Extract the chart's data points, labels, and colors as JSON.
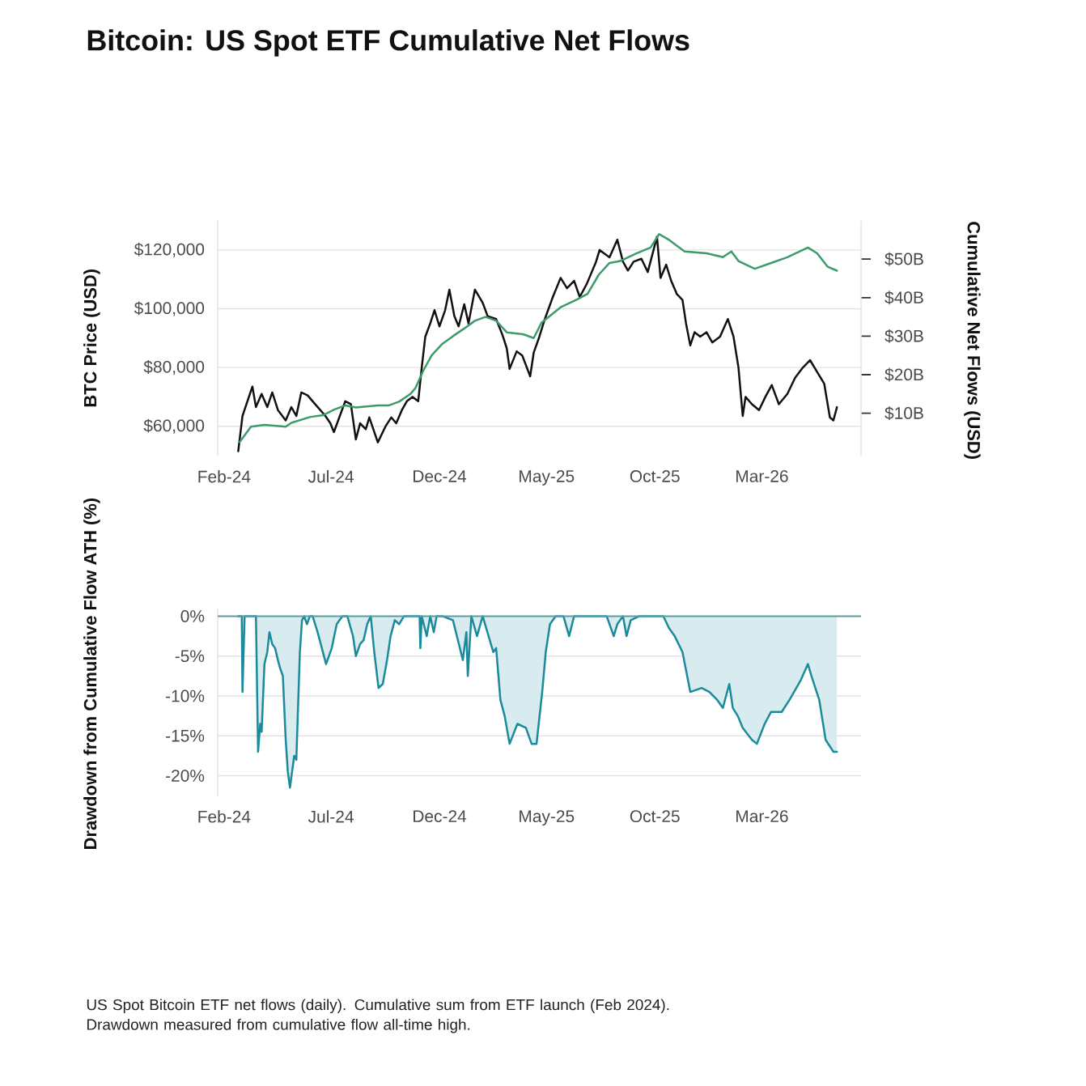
{
  "chart_data": [
    {
      "type": "line",
      "title": "Bitcoin: US Spot ETF Cumulative Net Flows",
      "ylabel": "BTC Price (USD)",
      "y2label": "Cumulative Net Flows (USD)",
      "xlim": [
        "2024-01-23",
        "2026-07-19"
      ],
      "xticks": [
        {
          "value": "2024-02-01",
          "label": "Feb-24"
        },
        {
          "value": "2024-07-01",
          "label": "Jul-24"
        },
        {
          "value": "2024-12-01",
          "label": "Dec-24"
        },
        {
          "value": "2025-05-01",
          "label": "May-25"
        },
        {
          "value": "2025-10-01",
          "label": "Oct-25"
        },
        {
          "value": "2026-03-01",
          "label": "Mar-26"
        }
      ],
      "ylim": [
        50000,
        130000
      ],
      "yticks": [
        {
          "value": 60000,
          "label": "$60,000"
        },
        {
          "value": 80000,
          "label": "$80,000"
        },
        {
          "value": 100000,
          "label": "$100,000"
        },
        {
          "value": 120000,
          "label": "$120,000"
        }
      ],
      "y2lim": [
        -1,
        60
      ],
      "y2ticks": [
        {
          "value": 10,
          "label": "$10B"
        },
        {
          "value": 20,
          "label": "$20B"
        },
        {
          "value": 30,
          "label": "$30B"
        },
        {
          "value": 40,
          "label": "$40B"
        },
        {
          "value": 50,
          "label": "$50B"
        }
      ],
      "grid": "y",
      "series": [
        {
          "color": "#111111",
          "x": [
            "2024-02-21",
            "2024-02-27",
            "2024-03-12",
            "2024-03-17",
            "2024-03-25",
            "2024-04-02",
            "2024-04-09",
            "2024-04-17",
            "2024-04-28",
            "2024-05-06",
            "2024-05-13",
            "2024-05-20",
            "2024-05-29",
            "2024-06-05",
            "2024-06-23",
            "2024-06-30",
            "2024-07-05",
            "2024-07-21",
            "2024-07-29",
            "2024-08-05",
            "2024-08-11",
            "2024-08-19",
            "2024-08-24",
            "2024-09-05",
            "2024-09-16",
            "2024-09-24",
            "2024-10-01",
            "2024-10-09",
            "2024-10-16",
            "2024-10-24",
            "2024-11-01",
            "2024-11-06",
            "2024-11-11",
            "2024-11-18",
            "2024-11-24",
            "2024-12-01",
            "2024-12-09",
            "2024-12-15",
            "2024-12-22",
            "2024-12-28",
            "2025-01-05",
            "2025-01-11",
            "2025-01-20",
            "2025-01-31",
            "2025-02-07",
            "2025-02-19",
            "2025-02-28",
            "2025-03-06",
            "2025-03-10",
            "2025-03-20",
            "2025-03-28",
            "2025-04-08",
            "2025-04-13",
            "2025-04-21",
            "2025-04-28",
            "2025-05-10",
            "2025-05-21",
            "2025-05-30",
            "2025-06-09",
            "2025-06-17",
            "2025-06-27",
            "2025-07-10",
            "2025-07-15",
            "2025-07-29",
            "2025-08-09",
            "2025-08-17",
            "2025-08-24",
            "2025-09-01",
            "2025-09-12",
            "2025-09-21",
            "2025-10-04",
            "2025-10-09",
            "2025-10-17",
            "2025-10-24",
            "2025-11-01",
            "2025-11-09",
            "2025-11-14",
            "2025-11-20",
            "2025-11-26",
            "2025-12-04",
            "2025-12-13",
            "2025-12-21",
            "2026-01-01",
            "2026-01-12",
            "2026-01-20",
            "2026-01-27",
            "2026-02-02",
            "2026-02-06",
            "2026-02-15",
            "2026-02-25",
            "2026-03-06",
            "2026-03-15",
            "2026-03-25",
            "2026-04-06",
            "2026-04-17",
            "2026-04-28",
            "2026-05-08",
            "2026-05-18",
            "2026-05-28",
            "2026-06-05",
            "2026-06-10",
            "2026-06-15"
          ],
          "values": [
            51500,
            63500,
            73500,
            66500,
            71000,
            66500,
            71500,
            65500,
            62000,
            66500,
            63500,
            71500,
            70500,
            68500,
            63500,
            61000,
            58000,
            68500,
            67500,
            55500,
            61000,
            59000,
            63000,
            54500,
            60000,
            63000,
            61000,
            65500,
            68500,
            70000,
            68500,
            80000,
            90500,
            95000,
            99500,
            94000,
            99500,
            106500,
            97500,
            94000,
            101500,
            95000,
            106500,
            102000,
            97500,
            96500,
            91000,
            86500,
            79500,
            85500,
            84000,
            77000,
            85000,
            90500,
            96000,
            104000,
            110500,
            107000,
            109500,
            104000,
            108500,
            116000,
            120000,
            117500,
            123500,
            116000,
            113000,
            116000,
            117000,
            112500,
            124500,
            110500,
            115000,
            109500,
            105000,
            103000,
            95000,
            87500,
            92000,
            90500,
            92000,
            88500,
            90500,
            96500,
            90500,
            80000,
            63500,
            70000,
            67500,
            65500,
            70000,
            74000,
            67500,
            71000,
            76500,
            80000,
            82500,
            78500,
            74500,
            63000,
            62000,
            66500
          ]
        },
        {
          "color": "#3d9b6b",
          "axis": "y2",
          "x": [
            "2024-02-23",
            "2024-03-10",
            "2024-03-29",
            "2024-04-28",
            "2024-05-06",
            "2024-06-01",
            "2024-06-20",
            "2024-07-06",
            "2024-07-21",
            "2024-08-05",
            "2024-09-05",
            "2024-09-20",
            "2024-10-05",
            "2024-10-21",
            "2024-10-28",
            "2024-11-08",
            "2024-11-20",
            "2024-12-05",
            "2024-12-20",
            "2025-01-05",
            "2025-01-20",
            "2025-02-04",
            "2025-02-19",
            "2025-03-06",
            "2025-03-29",
            "2025-04-13",
            "2025-04-24",
            "2025-05-21",
            "2025-06-13",
            "2025-06-28",
            "2025-07-14",
            "2025-07-29",
            "2025-08-13",
            "2025-09-05",
            "2025-09-25",
            "2025-10-07",
            "2025-10-21",
            "2025-11-12",
            "2025-12-13",
            "2026-01-05",
            "2026-01-17",
            "2026-01-27",
            "2026-02-19",
            "2026-03-14",
            "2026-04-06",
            "2026-05-05",
            "2026-05-18",
            "2026-06-02",
            "2026-06-15"
          ],
          "values": [
            2.5,
            6.5,
            7,
            6.5,
            7.5,
            9,
            9.5,
            11,
            12,
            11.5,
            12,
            12,
            13,
            15,
            16.5,
            21,
            25,
            28,
            30,
            32,
            34,
            35,
            34,
            31,
            30.5,
            29.5,
            33.5,
            37.5,
            39.5,
            41,
            46,
            49,
            49.5,
            51.5,
            53,
            56.5,
            55,
            52,
            51.5,
            50.5,
            52,
            49.5,
            47.5,
            49,
            50.5,
            53,
            51.5,
            48,
            47
          ]
        }
      ]
    },
    {
      "type": "area",
      "ylabel": "Drawdown from Cumulative Flow ATH (%)",
      "xlim": [
        "2024-01-23",
        "2026-07-19"
      ],
      "xticks": [
        {
          "value": "2024-02-01",
          "label": "Feb-24"
        },
        {
          "value": "2024-07-01",
          "label": "Jul-24"
        },
        {
          "value": "2024-12-01",
          "label": "Dec-24"
        },
        {
          "value": "2025-05-01",
          "label": "May-25"
        },
        {
          "value": "2025-10-01",
          "label": "Oct-25"
        },
        {
          "value": "2026-03-01",
          "label": "Mar-26"
        }
      ],
      "ylim": [
        -22.5,
        1
      ],
      "yticks": [
        {
          "value": -20,
          "label": "-20%"
        },
        {
          "value": -15,
          "label": "-15%"
        },
        {
          "value": -10,
          "label": "-10%"
        },
        {
          "value": -5,
          "label": "-5%"
        },
        {
          "value": 0,
          "label": "0%"
        }
      ],
      "grid": "y",
      "ref_lines": [
        {
          "axis": "y",
          "value": 0,
          "color": "#5e9ba3"
        }
      ],
      "series": [
        {
          "color": "#1b8a9b",
          "x": [
            "2024-02-21",
            "2024-02-26",
            "2024-02-27",
            "2024-03-01",
            "2024-03-17",
            "2024-03-20",
            "2024-03-23",
            "2024-03-25",
            "2024-03-29",
            "2024-04-02",
            "2024-04-05",
            "2024-04-09",
            "2024-04-13",
            "2024-04-17",
            "2024-04-20",
            "2024-04-24",
            "2024-04-28",
            "2024-05-01",
            "2024-05-04",
            "2024-05-07",
            "2024-05-10",
            "2024-05-13",
            "2024-05-15",
            "2024-05-18",
            "2024-05-21",
            "2024-05-24",
            "2024-05-28",
            "2024-06-01",
            "2024-06-05",
            "2024-06-12",
            "2024-06-18",
            "2024-06-24",
            "2024-07-02",
            "2024-07-09",
            "2024-07-17",
            "2024-07-24",
            "2024-08-01",
            "2024-08-05",
            "2024-08-11",
            "2024-08-16",
            "2024-08-21",
            "2024-08-26",
            "2024-08-31",
            "2024-09-06",
            "2024-09-12",
            "2024-09-18",
            "2024-09-23",
            "2024-09-29",
            "2024-10-05",
            "2024-10-12",
            "2024-11-03",
            "2024-11-04",
            "2024-11-06",
            "2024-11-13",
            "2024-11-18",
            "2024-11-23",
            "2024-11-27",
            "2024-12-05",
            "2024-12-20",
            "2024-12-27",
            "2025-01-03",
            "2025-01-08",
            "2025-01-10",
            "2025-01-15",
            "2025-01-23",
            "2025-01-31",
            "2025-02-15",
            "2025-02-19",
            "2025-02-25",
            "2025-03-03",
            "2025-03-10",
            "2025-03-21",
            "2025-04-02",
            "2025-04-10",
            "2025-04-17",
            "2025-04-25",
            "2025-04-30",
            "2025-05-06",
            "2025-05-14",
            "2025-05-25",
            "2025-06-02",
            "2025-06-09",
            "2025-07-25",
            "2025-08-04",
            "2025-08-09",
            "2025-08-17",
            "2025-08-22",
            "2025-08-28",
            "2025-09-09",
            "2025-10-13",
            "2025-10-21",
            "2025-10-29",
            "2025-11-09",
            "2025-11-20",
            "2025-12-06",
            "2025-12-17",
            "2025-12-28",
            "2026-01-05",
            "2026-01-14",
            "2026-01-19",
            "2026-01-26",
            "2026-02-02",
            "2026-02-15",
            "2026-02-22",
            "2026-03-05",
            "2026-03-14",
            "2026-03-29",
            "2026-04-09",
            "2026-04-25",
            "2026-05-05",
            "2026-05-10",
            "2026-05-21",
            "2026-05-30",
            "2026-06-10",
            "2026-06-15"
          ],
          "values": [
            0,
            0,
            -9.5,
            0,
            0,
            -17,
            -13.5,
            -14.5,
            -6,
            -4.5,
            -2,
            -3.5,
            -4,
            -5.5,
            -6.5,
            -7.5,
            -15.5,
            -19.5,
            -21.5,
            -19.5,
            -17.5,
            -18,
            -12.5,
            -4.5,
            -0.5,
            0,
            -1,
            0,
            0,
            -2,
            -4,
            -6,
            -4,
            -1,
            0,
            0,
            -2.5,
            -5,
            -3.5,
            -3,
            -1,
            0,
            -4.5,
            -9,
            -8.5,
            -5.5,
            -2.5,
            -0.5,
            -1,
            0,
            0,
            -4,
            0,
            -2.5,
            0,
            -2,
            0,
            0,
            -0.5,
            -3,
            -5.5,
            -2,
            -7.5,
            0,
            -2.5,
            0,
            -4.5,
            -4,
            -10.5,
            -12.5,
            -16,
            -13.5,
            -14,
            -16,
            -16,
            -9.5,
            -4.5,
            -1,
            0,
            0,
            -2.5,
            0,
            0,
            -2.5,
            -1,
            0,
            -2.5,
            -0.5,
            0,
            0,
            -1.5,
            -2.5,
            -4.5,
            -9.5,
            -9,
            -9.5,
            -10.5,
            -11.5,
            -8.5,
            -11.5,
            -12.5,
            -14,
            -15.5,
            -16,
            -13.5,
            -12,
            -12,
            -10.5,
            -8,
            -6,
            -7.5,
            -10.5,
            -15.5,
            -17,
            -17
          ]
        }
      ],
      "annotations": [
        "US Spot Bitcoin ETF net flows (daily). Cumulative sum from ETF launch (Feb 2024). Drawdown measured from cumulative flow all-time high."
      ]
    }
  ]
}
